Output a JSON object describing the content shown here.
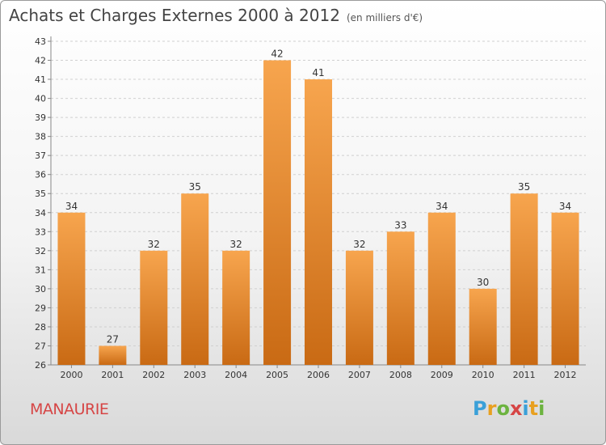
{
  "header": {
    "title": "Achats et Charges Externes 2000 à 2012",
    "subtitle": "(en milliers d'€)"
  },
  "footer": {
    "place": "MANAURIE",
    "logo": "Proxiti"
  },
  "colors": {
    "bar_light": "#f7a54e",
    "bar_dark": "#c96a14",
    "place": "#d64545"
  },
  "chart_data": {
    "type": "bar",
    "categories": [
      "2000",
      "2001",
      "2002",
      "2003",
      "2004",
      "2005",
      "2006",
      "2007",
      "2008",
      "2009",
      "2010",
      "2011",
      "2012"
    ],
    "values": [
      34,
      27,
      32,
      35,
      32,
      42,
      41,
      32,
      33,
      34,
      30,
      35,
      34
    ],
    "ylim": [
      26,
      43
    ],
    "yticks": [
      26,
      27,
      28,
      29,
      30,
      31,
      32,
      33,
      34,
      35,
      36,
      37,
      38,
      39,
      40,
      41,
      42,
      43
    ],
    "grid": true,
    "xlabel": "",
    "ylabel": ""
  }
}
